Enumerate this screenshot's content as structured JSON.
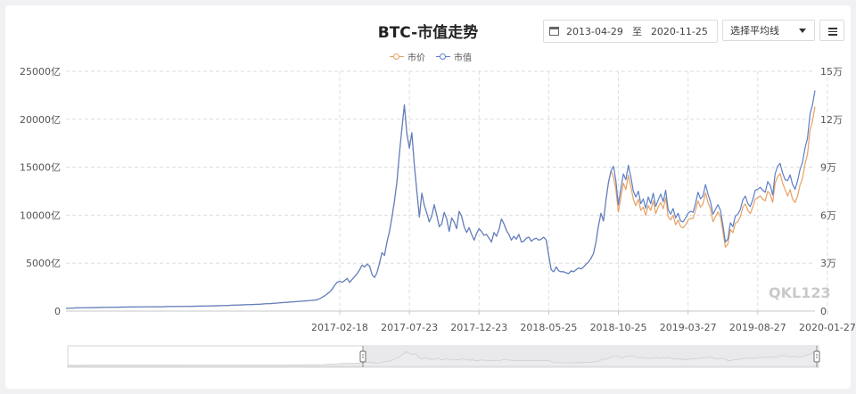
{
  "page": {
    "title": "BTC-市值走势",
    "date_start": "2013-04-29",
    "date_to": "至",
    "date_end": "2020-11-25",
    "ma_select": "选择平均线",
    "watermark": "QKL123"
  },
  "colors": {
    "price": "#e8a063",
    "cap": "#5b7fc7",
    "grid": "#dedede",
    "axis_text": "#555555"
  },
  "chart_data": {
    "type": "line",
    "title": "BTC-市值走势",
    "legend_position": "top-center",
    "grid": true,
    "x_ticks": [
      "2017-02-18",
      "2017-07-23",
      "2017-12-23",
      "2018-05-25",
      "2018-10-25",
      "2019-03-27",
      "2019-08-27",
      "2020-01-27"
    ],
    "x_tick_index": [
      110,
      138,
      166,
      194,
      222,
      250,
      278,
      306
    ],
    "y_left": {
      "range": [
        0,
        25000
      ],
      "unit": "亿",
      "ticks": [
        "0",
        "5000亿",
        "10000亿",
        "15000亿",
        "20000亿",
        "25000亿"
      ]
    },
    "y_right": {
      "range": [
        0,
        15
      ],
      "unit": "万",
      "ticks": [
        "0",
        "3万",
        "6万",
        "9万",
        "12万",
        "15万"
      ]
    },
    "series": [
      {
        "name": "市值",
        "axis": "left",
        "values": [
          300,
          300,
          310,
          320,
          330,
          340,
          345,
          350,
          355,
          360,
          360,
          365,
          370,
          375,
          380,
          385,
          390,
          395,
          400,
          400,
          405,
          410,
          415,
          415,
          420,
          425,
          425,
          430,
          430,
          435,
          440,
          440,
          445,
          445,
          450,
          450,
          455,
          455,
          460,
          460,
          465,
          470,
          470,
          475,
          480,
          480,
          485,
          490,
          490,
          495,
          500,
          505,
          510,
          515,
          520,
          525,
          530,
          540,
          545,
          550,
          555,
          560,
          570,
          575,
          580,
          590,
          600,
          610,
          620,
          630,
          640,
          650,
          660,
          670,
          680,
          690,
          700,
          710,
          720,
          740,
          760,
          770,
          780,
          800,
          820,
          840,
          860,
          880,
          900,
          920,
          940,
          960,
          980,
          1000,
          1020,
          1040,
          1060,
          1080,
          1100,
          1120,
          1150,
          1200,
          1300,
          1450,
          1600,
          1800,
          2000,
          2300,
          2700,
          3000,
          3100,
          3000,
          3200,
          3400,
          3000,
          3300,
          3600,
          3900,
          4300,
          4800,
          4600,
          4900,
          4700,
          3800,
          3500,
          4000,
          5000,
          6100,
          5800,
          7200,
          8300,
          9800,
          11500,
          13500,
          16500,
          19000,
          21500,
          18500,
          17000,
          18600,
          15200,
          12500,
          9800,
          12300,
          11000,
          10200,
          9300,
          9900,
          11100,
          10000,
          8800,
          9100,
          10300,
          9600,
          8300,
          9700,
          9300,
          8600,
          10400,
          9900,
          8800,
          8200,
          8700,
          8000,
          7400,
          8100,
          8600,
          8300,
          7900,
          8000,
          7600,
          7200,
          8200,
          7800,
          8500,
          9600,
          9100,
          8400,
          8000,
          7400,
          7800,
          7500,
          8000,
          7200,
          7300,
          7600,
          7700,
          7300,
          7500,
          7600,
          7400,
          7500,
          7700,
          7400,
          5800,
          4300,
          4100,
          4600,
          4200,
          4100,
          4100,
          4000,
          3900,
          4200,
          4100,
          4300,
          4500,
          4400,
          4600,
          4900,
          5100,
          5500,
          6000,
          7200,
          8900,
          10200,
          9400,
          11600,
          13400,
          14600,
          15100,
          13600,
          11100,
          12800,
          14300,
          13700,
          15200,
          14000,
          12500,
          11900,
          12500,
          11200,
          11700,
          10700,
          11900,
          11200,
          12300,
          10900,
          11600,
          12200,
          11400,
          12600,
          10600,
          10100,
          10700,
          9700,
          10200,
          9400,
          9300,
          9700,
          10200,
          10400,
          10300,
          11200,
          12400,
          11700,
          12000,
          13200,
          12200,
          11400,
          10100,
          10600,
          11100,
          10500,
          9000,
          7200,
          7500,
          9200,
          8800,
          9900,
          10100,
          10600,
          11600,
          12000,
          11200,
          10900,
          11600,
          12600,
          12700,
          12900,
          12600,
          12400,
          13500,
          13100,
          12100,
          14300,
          15100,
          15400,
          14400,
          13700,
          13600,
          14200,
          13200,
          12700,
          13600,
          14800,
          15500,
          17000,
          18000,
          20500,
          21500,
          23000
        ]
      },
      {
        "name": "市价",
        "axis": "right",
        "values": [
          0.18,
          0.18,
          0.186,
          0.192,
          0.198,
          0.204,
          0.207,
          0.21,
          0.213,
          0.216,
          0.216,
          0.219,
          0.222,
          0.225,
          0.228,
          0.231,
          0.234,
          0.237,
          0.24,
          0.24,
          0.243,
          0.246,
          0.249,
          0.249,
          0.252,
          0.255,
          0.255,
          0.258,
          0.258,
          0.261,
          0.264,
          0.264,
          0.267,
          0.267,
          0.27,
          0.27,
          0.273,
          0.273,
          0.276,
          0.276,
          0.279,
          0.282,
          0.282,
          0.285,
          0.288,
          0.288,
          0.291,
          0.294,
          0.294,
          0.297,
          0.3,
          0.303,
          0.306,
          0.309,
          0.312,
          0.315,
          0.318,
          0.324,
          0.327,
          0.33,
          0.333,
          0.336,
          0.342,
          0.345,
          0.348,
          0.354,
          0.36,
          0.366,
          0.372,
          0.378,
          0.384,
          0.39,
          0.396,
          0.402,
          0.408,
          0.414,
          0.42,
          0.426,
          0.432,
          0.444,
          0.456,
          0.462,
          0.468,
          0.48,
          0.492,
          0.504,
          0.516,
          0.528,
          0.54,
          0.552,
          0.564,
          0.576,
          0.588,
          0.6,
          0.612,
          0.624,
          0.636,
          0.648,
          0.66,
          0.672,
          0.69,
          0.72,
          0.78,
          0.87,
          0.96,
          1.08,
          1.2,
          1.38,
          1.62,
          1.8,
          1.86,
          1.8,
          1.92,
          2.04,
          1.8,
          1.98,
          2.16,
          2.34,
          2.58,
          2.88,
          2.76,
          2.94,
          2.82,
          2.28,
          2.1,
          2.4,
          3.0,
          3.66,
          3.48,
          4.32,
          4.98,
          5.88,
          6.9,
          8.1,
          9.9,
          11.4,
          12.9,
          11.1,
          10.2,
          11.16,
          9.12,
          7.5,
          5.88,
          7.38,
          6.6,
          6.12,
          5.58,
          5.94,
          6.66,
          6.0,
          5.28,
          5.46,
          6.18,
          5.76,
          4.98,
          5.82,
          5.58,
          5.16,
          6.24,
          5.94,
          5.28,
          4.92,
          5.22,
          4.8,
          4.44,
          4.86,
          5.16,
          4.98,
          4.74,
          4.8,
          4.56,
          4.32,
          4.92,
          4.68,
          5.1,
          5.76,
          5.46,
          5.04,
          4.8,
          4.44,
          4.68,
          4.5,
          4.8,
          4.32,
          4.38,
          4.56,
          4.62,
          4.38,
          4.5,
          4.56,
          4.44,
          4.5,
          4.62,
          4.44,
          3.48,
          2.58,
          2.46,
          2.76,
          2.52,
          2.46,
          2.46,
          2.4,
          2.34,
          2.52,
          2.46,
          2.58,
          2.7,
          2.64,
          2.76,
          2.94,
          3.06,
          3.3,
          3.6,
          4.32,
          5.34,
          6.12,
          5.64,
          6.96,
          8.04,
          8.76,
          8.4,
          7.6,
          6.2,
          7.1,
          8.0,
          7.6,
          8.5,
          7.8,
          7.0,
          6.6,
          7.0,
          6.3,
          6.5,
          6.0,
          6.6,
          6.3,
          6.9,
          6.1,
          6.5,
          6.8,
          6.4,
          7.1,
          5.9,
          5.7,
          6.0,
          5.4,
          5.7,
          5.3,
          5.2,
          5.4,
          5.7,
          5.8,
          5.8,
          6.3,
          6.9,
          6.5,
          6.7,
          7.4,
          6.8,
          6.4,
          5.6,
          5.9,
          6.2,
          5.9,
          5.0,
          4.0,
          4.2,
          5.1,
          4.9,
          5.5,
          5.6,
          5.9,
          6.5,
          6.7,
          6.3,
          6.1,
          6.5,
          7.0,
          7.1,
          7.2,
          7.0,
          6.9,
          7.5,
          7.3,
          6.8,
          8.0,
          8.4,
          8.6,
          8.0,
          7.6,
          7.2,
          7.6,
          7.0,
          6.8,
          7.2,
          7.9,
          8.3,
          9.2,
          9.8,
          11.3,
          11.9,
          12.8
        ]
      }
    ]
  }
}
